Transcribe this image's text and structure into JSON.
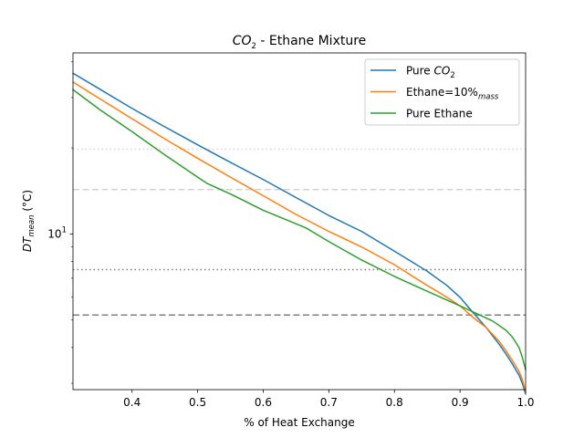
{
  "chart_data": {
    "type": "line",
    "title": {
      "pre": "",
      "main": "CO",
      "sub": "2",
      "post": " - Ethane Mixture"
    },
    "xlabel": "% of Heat Exchange",
    "ylabel": {
      "main": "DT",
      "sub": "mean",
      "post": " (°C)"
    },
    "xlim": [
      0.31,
      1.0
    ],
    "ylim": [
      2.85,
      43
    ],
    "yscale": "log",
    "grid": false,
    "legend_position": "upper right",
    "x_ticks": [
      0.4,
      0.5,
      0.6,
      0.7,
      0.8,
      0.9,
      1.0
    ],
    "x_tick_labels": [
      "0.4",
      "0.5",
      "0.6",
      "0.7",
      "0.8",
      "0.9",
      "1.0"
    ],
    "y_ticks": [
      10
    ],
    "y_tick_labels": [
      "10^1"
    ],
    "y_tick_label": {
      "base": "10",
      "exp": "1"
    },
    "hlines": [
      {
        "y": 19.8,
        "color": "#d3d3d3",
        "style": "dotted"
      },
      {
        "y": 14.3,
        "color": "#d3d3d3",
        "style": "dashed"
      },
      {
        "y": 7.5,
        "color": "#808080",
        "style": "dotted"
      },
      {
        "y": 5.2,
        "color": "#808080",
        "style": "dashed"
      }
    ],
    "series": [
      {
        "name": "Pure CO2",
        "label_parts": {
          "main": "Pure ",
          "ital": "CO",
          "sub": "2",
          "post": ""
        },
        "color": "#1f77b4",
        "x": [
          0.31,
          0.35,
          0.4,
          0.45,
          0.5,
          0.55,
          0.6,
          0.65,
          0.7,
          0.75,
          0.8,
          0.85,
          0.88,
          0.9,
          0.92,
          0.94,
          0.96,
          0.97,
          0.98,
          0.99,
          0.995,
          1.0
        ],
        "y": [
          36.5,
          32.2,
          27.5,
          23.7,
          20.5,
          17.8,
          15.5,
          13.4,
          11.6,
          10.2,
          8.7,
          7.4,
          6.6,
          6.0,
          5.3,
          4.7,
          4.1,
          3.8,
          3.5,
          3.2,
          3.0,
          2.75
        ]
      },
      {
        "name": "Ethane=10%mass",
        "label_parts": {
          "main": "Ethane=10%",
          "ital": "",
          "sub": "mass",
          "post": ""
        },
        "color": "#ff7f0e",
        "x": [
          0.31,
          0.35,
          0.4,
          0.45,
          0.5,
          0.55,
          0.6,
          0.65,
          0.7,
          0.75,
          0.8,
          0.85,
          0.88,
          0.9,
          0.92,
          0.94,
          0.96,
          0.97,
          0.98,
          0.99,
          0.995,
          1.0
        ],
        "y": [
          34.0,
          29.8,
          25.3,
          21.5,
          18.4,
          15.8,
          13.6,
          11.7,
          10.2,
          9.0,
          7.8,
          6.6,
          6.0,
          5.6,
          5.1,
          4.7,
          4.2,
          3.9,
          3.6,
          3.3,
          3.1,
          2.8
        ]
      },
      {
        "name": "Pure Ethane",
        "label_parts": {
          "main": "Pure Ethane",
          "ital": "",
          "sub": "",
          "post": ""
        },
        "color": "#2ca02c",
        "x": [
          0.31,
          0.35,
          0.4,
          0.45,
          0.5,
          0.515,
          0.55,
          0.6,
          0.665,
          0.7,
          0.75,
          0.8,
          0.85,
          0.9,
          0.93,
          0.95,
          0.97,
          0.98,
          0.99,
          0.995,
          1.0
        ],
        "y": [
          32.0,
          27.3,
          22.8,
          18.9,
          15.8,
          15.0,
          13.8,
          12.1,
          10.5,
          9.4,
          8.1,
          7.1,
          6.3,
          5.6,
          5.2,
          4.95,
          4.6,
          4.35,
          4.0,
          3.7,
          3.35
        ]
      }
    ]
  }
}
